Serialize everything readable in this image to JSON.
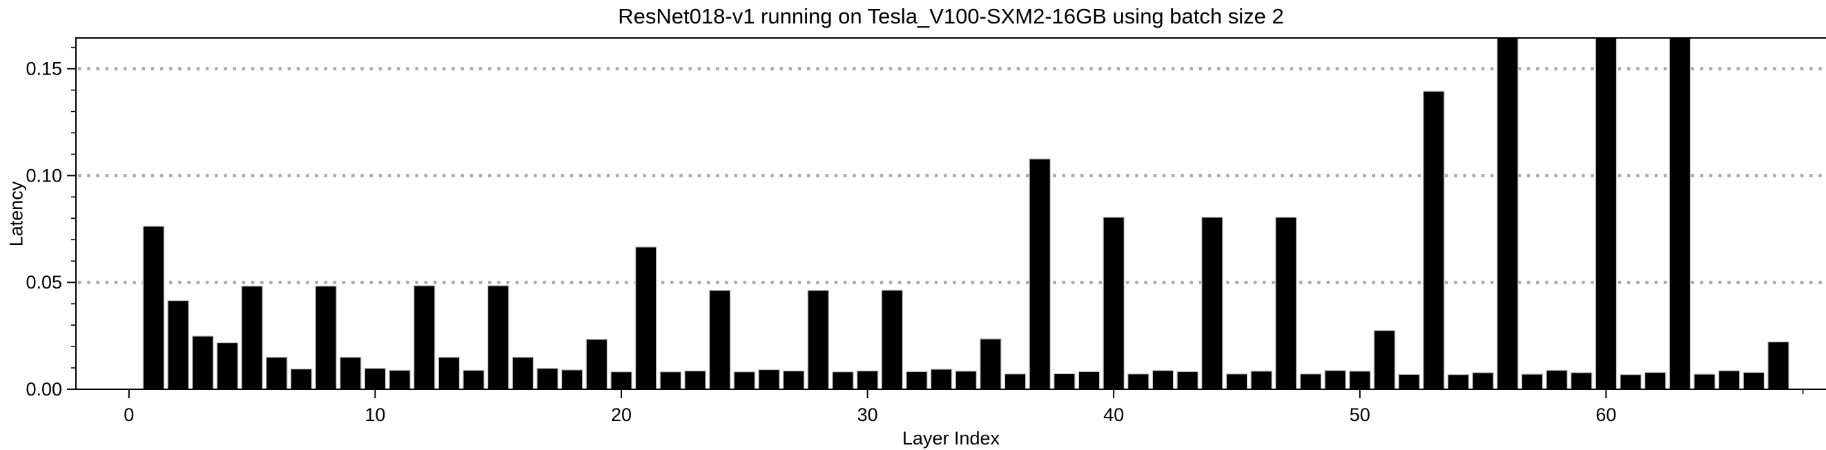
{
  "chart_data": {
    "type": "bar",
    "title": "ResNet018-v1 running on Tesla_V100-SXM2-16GB using batch size 2",
    "xlabel": "Layer Index",
    "ylabel": "Latency",
    "x": [
      1,
      2,
      3,
      4,
      5,
      6,
      7,
      8,
      9,
      10,
      11,
      12,
      13,
      14,
      15,
      16,
      17,
      18,
      19,
      20,
      21,
      22,
      23,
      24,
      25,
      26,
      27,
      28,
      29,
      30,
      31,
      32,
      33,
      34,
      35,
      36,
      37,
      38,
      39,
      40,
      41,
      42,
      43,
      44,
      45,
      46,
      47,
      48,
      49,
      50,
      51,
      52,
      53,
      54,
      55,
      56,
      57,
      58,
      59,
      60,
      61,
      62,
      63,
      64,
      65,
      66,
      67
    ],
    "values": [
      0.0763,
      0.0415,
      0.0249,
      0.0218,
      0.0483,
      0.015,
      0.0095,
      0.0483,
      0.015,
      0.0098,
      0.0089,
      0.0485,
      0.015,
      0.0089,
      0.0485,
      0.015,
      0.0098,
      0.0091,
      0.0234,
      0.0082,
      0.0666,
      0.0082,
      0.0086,
      0.0463,
      0.0082,
      0.0092,
      0.0086,
      0.0463,
      0.0082,
      0.0086,
      0.0464,
      0.0083,
      0.0094,
      0.0085,
      0.0236,
      0.0072,
      0.1078,
      0.0073,
      0.0083,
      0.0805,
      0.0072,
      0.0088,
      0.0083,
      0.0805,
      0.0072,
      0.0085,
      0.0805,
      0.0072,
      0.0088,
      0.0085,
      0.0275,
      0.007,
      0.1395,
      0.0069,
      0.0078,
      0.165,
      0.0071,
      0.0089,
      0.0078,
      0.165,
      0.0069,
      0.0079,
      0.165,
      0.0071,
      0.0087,
      0.0079,
      0.0222
    ],
    "clipped_at_top_layers": [
      56,
      60,
      63
    ],
    "x_ticks": [
      0,
      10,
      20,
      30,
      40,
      50,
      60
    ],
    "y_ticks": [
      0.0,
      0.05,
      0.1,
      0.15
    ],
    "y_tick_labels": [
      "0.00",
      "0.05",
      "0.10",
      "0.15"
    ],
    "y_minor_tick_step": 0.01,
    "x_end_minor_tick": 68,
    "ylim": [
      0,
      0.165
    ],
    "xlim": [
      -2.2,
      68.9
    ],
    "grid": "dotted horizontal at y major ticks",
    "legend": "none",
    "colors": {
      "bar_fill": "#000000",
      "bar_edge": "#c9c9c9",
      "grid": "#ababab",
      "axis": "#000000",
      "background": "#ffffff"
    }
  }
}
